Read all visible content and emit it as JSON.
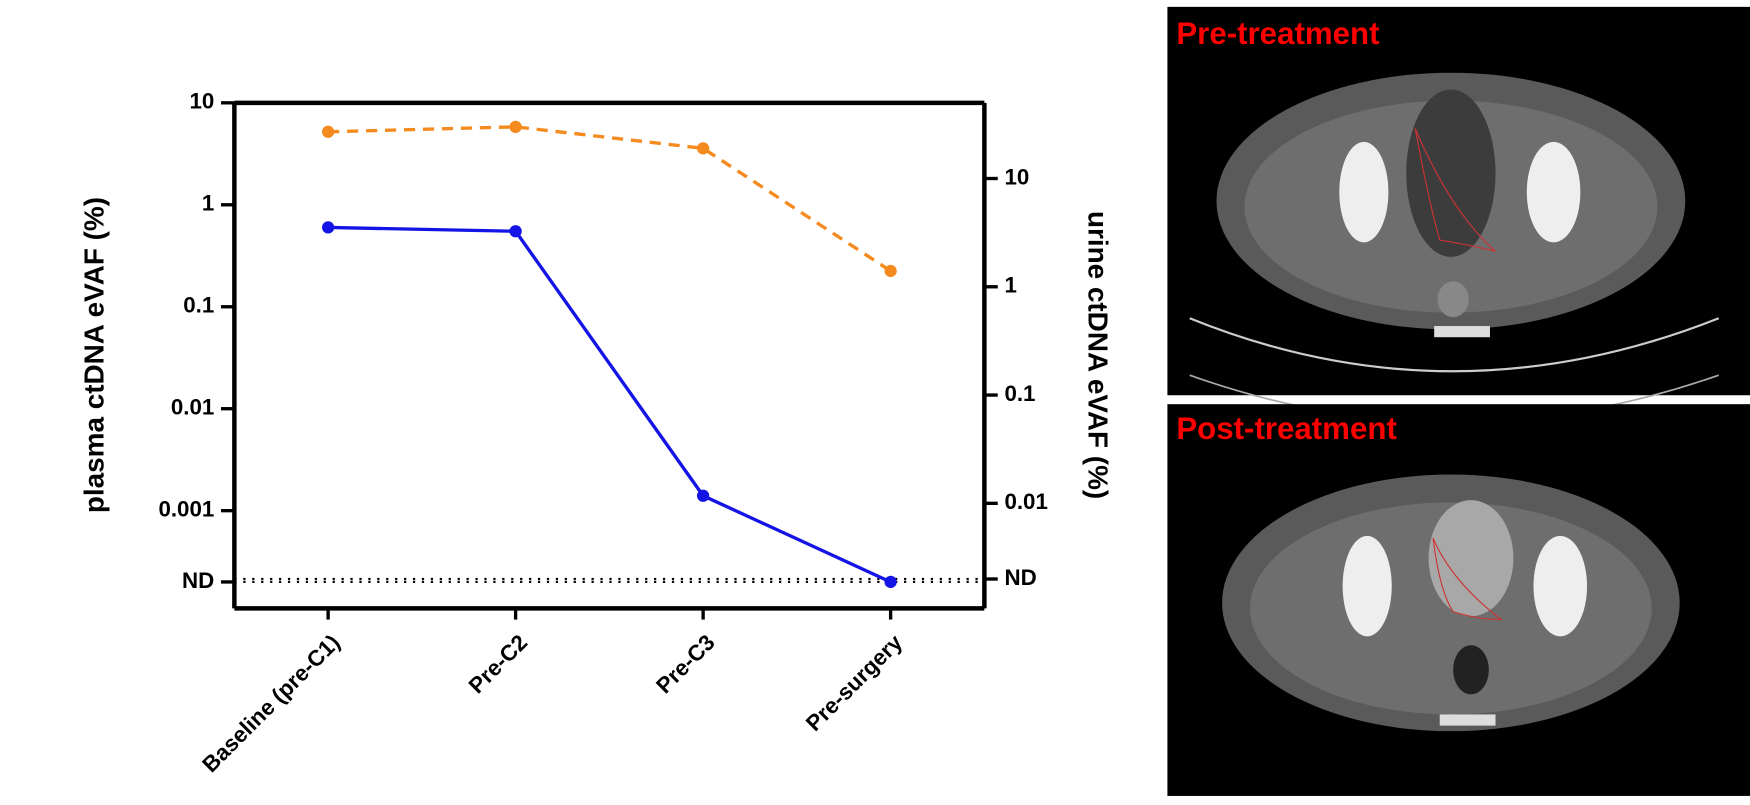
{
  "chart_data": {
    "type": "line",
    "categories": [
      "Baseline (pre-C1)",
      "Pre-C2",
      "Pre-C3",
      "Pre-surgery"
    ],
    "y_label": "plasma ctDNA eVAF (%)",
    "y2_label": "urine ctDNA eVAF (%)",
    "log_scale": true,
    "ylim": [
      0.00011,
      10
    ],
    "yticks": [
      {
        "value": 0.0002,
        "label": "ND"
      },
      0.001,
      0.01,
      0.1,
      1,
      10
    ],
    "y2lim": [
      0.00107,
      50
    ],
    "y2ticks": [
      {
        "value": 0.002,
        "label": "ND"
      },
      0.01,
      0.1,
      1,
      10
    ],
    "series": [
      {
        "color": "#1414e6",
        "dash": false,
        "values": [
          0.6,
          0.55,
          0.0014,
          0.0002
        ]
      },
      {
        "color": "#f58a1f",
        "dash": true,
        "axis": "y2",
        "values": [
          27,
          30,
          19,
          1.4
        ]
      }
    ]
  },
  "images": [
    {
      "label": "Pre-treatment"
    },
    {
      "label": "Post-treatment"
    }
  ]
}
